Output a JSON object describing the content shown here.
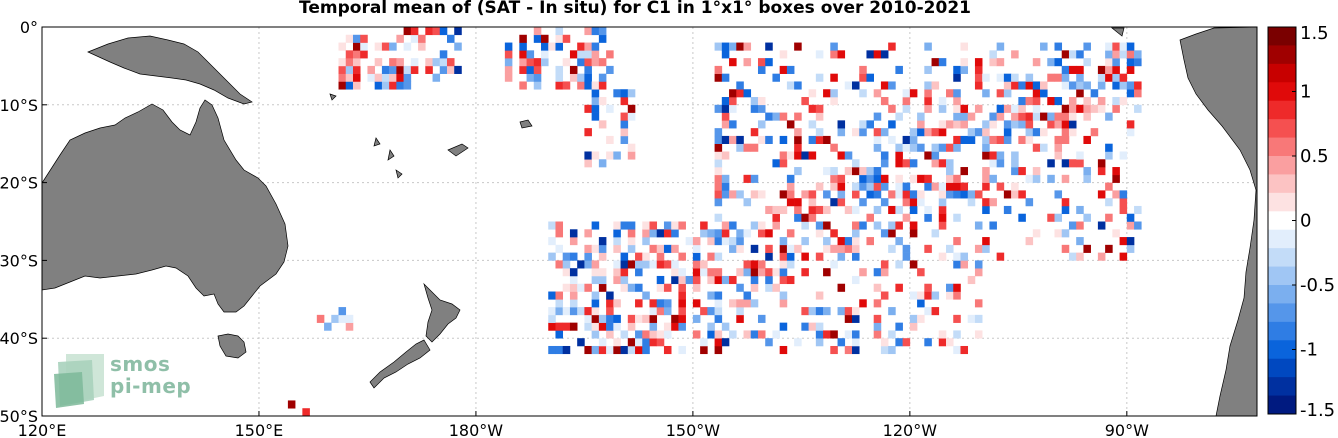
{
  "title": "Temporal mean of (SAT - In situ) for C1 in 1°x1° boxes over 2010-2021",
  "logo": {
    "line1": "smos",
    "line2": "pi-mep"
  },
  "axes": {
    "x_ticks": [
      {
        "label": "120°E",
        "lon": 120
      },
      {
        "label": "150°E",
        "lon": 150
      },
      {
        "label": "180°W",
        "lon": 180
      },
      {
        "label": "150°W",
        "lon": 210
      },
      {
        "label": "120°W",
        "lon": 240
      },
      {
        "label": "90°W",
        "lon": 270
      }
    ],
    "y_ticks": [
      {
        "label": "0°",
        "lat": 0
      },
      {
        "label": "10°S",
        "lat": -10
      },
      {
        "label": "20°S",
        "lat": -20
      },
      {
        "label": "30°S",
        "lat": -30
      },
      {
        "label": "40°S",
        "lat": -40
      },
      {
        "label": "50°S",
        "lat": -50
      }
    ],
    "lon_range": [
      120,
      288
    ],
    "lat_range": [
      -50,
      0
    ],
    "grid": true
  },
  "colorbar": {
    "ticks": [
      "1.5",
      "1",
      "0.5",
      "0",
      "-0.5",
      "-1",
      "-1.5"
    ],
    "range": [
      -1.5,
      1.5
    ],
    "colors_top_to_bottom": [
      "#7a0000",
      "#a00000",
      "#c80000",
      "#e00a0a",
      "#ee2a2a",
      "#f55050",
      "#f87878",
      "#fa9fa0",
      "#fcc3c3",
      "#fde2e2",
      "#ffffff",
      "#e2eefc",
      "#c3dcf8",
      "#a0c6f4",
      "#7bafef",
      "#5596ea",
      "#2f7de4",
      "#0a64dc",
      "#0048c0",
      "#0030a0",
      "#001a80"
    ]
  },
  "colors": {
    "land": "#808080",
    "grid": "#c8c8c8"
  },
  "chart_data": {
    "type": "heatmap",
    "title": "Temporal mean of (SAT - In situ) for C1 in 1°x1° boxes over 2010-2021",
    "value_range": [
      -1.5,
      1.5
    ],
    "regions": [
      {
        "lon": [
          161,
          171
        ],
        "lat": [
          -8,
          -1
        ]
      },
      {
        "lon": [
          170,
          178
        ],
        "lat": [
          -7,
          0
        ]
      },
      {
        "lon": [
          184,
          199
        ],
        "lat": [
          -8,
          0
        ]
      },
      {
        "lon": [
          195,
          202
        ],
        "lat": [
          -18,
          -8
        ]
      },
      {
        "lon": [
          213,
          272
        ],
        "lat": [
          -30,
          -2
        ]
      },
      {
        "lon": [
          190,
          250
        ],
        "lat": [
          -42,
          -25
        ]
      },
      {
        "lon": [
          158,
          163
        ],
        "lat": [
          -39,
          -36
        ]
      },
      {
        "lon": [
          154,
          157
        ],
        "lat": [
          -50,
          -48
        ]
      }
    ]
  }
}
